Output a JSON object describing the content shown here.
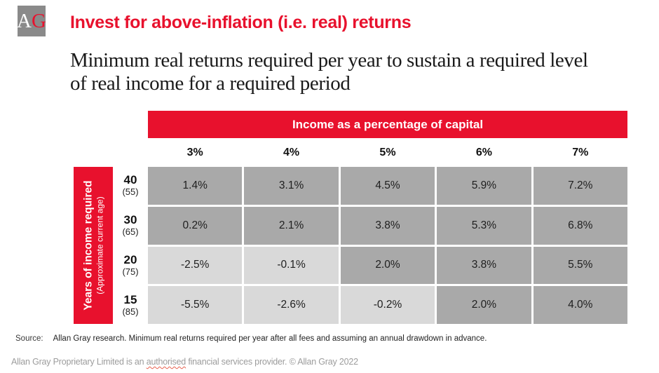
{
  "logo": {
    "letter_a": "A",
    "letter_g": "G"
  },
  "header": {
    "title": "Invest for above-inflation (i.e. real) returns",
    "subtitle_line1": "Minimum real returns required per year to sustain a required level",
    "subtitle_line2": "of real income for a required period"
  },
  "table": {
    "banner": "Income as a percentage of capital",
    "column_headers": [
      "3%",
      "4%",
      "5%",
      "6%",
      "7%"
    ],
    "y_axis": {
      "label": "Years of income required",
      "sublabel": "(Approximate current age)"
    },
    "rows": [
      {
        "years": "40",
        "age": "(55)",
        "values": [
          {
            "text": "1.4%",
            "shade": "dark"
          },
          {
            "text": "3.1%",
            "shade": "dark"
          },
          {
            "text": "4.5%",
            "shade": "dark"
          },
          {
            "text": "5.9%",
            "shade": "dark"
          },
          {
            "text": "7.2%",
            "shade": "dark"
          }
        ]
      },
      {
        "years": "30",
        "age": "(65)",
        "values": [
          {
            "text": "0.2%",
            "shade": "dark"
          },
          {
            "text": "2.1%",
            "shade": "dark"
          },
          {
            "text": "3.8%",
            "shade": "dark"
          },
          {
            "text": "5.3%",
            "shade": "dark"
          },
          {
            "text": "6.8%",
            "shade": "dark"
          }
        ]
      },
      {
        "years": "20",
        "age": "(75)",
        "values": [
          {
            "text": "-2.5%",
            "shade": "light"
          },
          {
            "text": "-0.1%",
            "shade": "light"
          },
          {
            "text": "2.0%",
            "shade": "dark"
          },
          {
            "text": "3.8%",
            "shade": "dark"
          },
          {
            "text": "5.5%",
            "shade": "dark"
          }
        ]
      },
      {
        "years": "15",
        "age": "(85)",
        "values": [
          {
            "text": "-5.5%",
            "shade": "light"
          },
          {
            "text": "-2.6%",
            "shade": "light"
          },
          {
            "text": "-0.2%",
            "shade": "light"
          },
          {
            "text": "2.0%",
            "shade": "dark"
          },
          {
            "text": "4.0%",
            "shade": "dark"
          }
        ]
      }
    ]
  },
  "footer": {
    "source_label": "Source:",
    "source_text": "Allan Gray research. Minimum real returns required per year after all fees and assuming an annual drawdown in advance.",
    "legal_prefix": "Allan Gray Proprietary Limited is an ",
    "legal_highlight": "authorised",
    "legal_suffix": " financial services provider. © Allan Gray 2022"
  },
  "colors": {
    "brand_red": "#e8112d",
    "cell_dark": "#a9a9a9",
    "cell_light": "#d9d9d9",
    "logo_gray": "#8a8a8a"
  },
  "chart_data": {
    "type": "table",
    "title": "Invest for above-inflation (i.e. real) returns",
    "subtitle": "Minimum real returns required per year to sustain a required level of real income for a required period",
    "column_group_label": "Income as a percentage of capital",
    "columns": [
      "3%",
      "4%",
      "5%",
      "6%",
      "7%"
    ],
    "row_group_label": "Years of income required (Approximate current age)",
    "rows": [
      "40 (55)",
      "30 (65)",
      "20 (75)",
      "15 (85)"
    ],
    "values": [
      [
        1.4,
        3.1,
        4.5,
        5.9,
        7.2
      ],
      [
        0.2,
        2.1,
        3.8,
        5.3,
        6.8
      ],
      [
        -2.5,
        -0.1,
        2.0,
        3.8,
        5.5
      ],
      [
        -5.5,
        -2.6,
        -0.2,
        2.0,
        4.0
      ]
    ],
    "unit": "%",
    "shading_rule": "negative values shown on light gray cells, non-negative on dark gray cells",
    "source": "Allan Gray research. Minimum real returns required per year after all fees and assuming an annual drawdown in advance."
  }
}
